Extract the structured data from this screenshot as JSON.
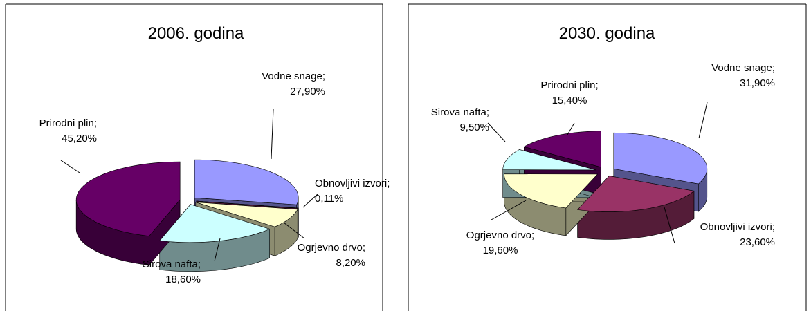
{
  "chart_data": [
    {
      "type": "pie",
      "title": "2006. godina",
      "categories": [
        "Vodne snage;",
        "Obnovljivi izvori;",
        "Ogrjevno drvo;",
        "Sirova nafta;",
        "Prirodni plin;"
      ],
      "values": [
        27.9,
        0.11,
        8.2,
        18.6,
        45.2
      ],
      "value_labels": [
        "27,90%",
        "0,11%",
        "8,20%",
        "18,60%",
        "45,20%"
      ],
      "colors": [
        "#9999ff",
        "#993366",
        "#ffffcc",
        "#ccffff",
        "#660066"
      ]
    },
    {
      "type": "pie",
      "title": "2030. godina",
      "categories": [
        "Vodne snage;",
        "Obnovljivi izvori;",
        "Ogrjevno drvo;",
        "Sirova nafta;",
        "Prirodni plin;"
      ],
      "values": [
        31.9,
        23.6,
        19.6,
        9.5,
        15.4
      ],
      "value_labels": [
        "31,90%",
        "23,60%",
        "19,60%",
        "9,50%",
        "15,40%"
      ],
      "colors": [
        "#9999ff",
        "#993366",
        "#ffffcc",
        "#ccffff",
        "#660066"
      ]
    }
  ]
}
